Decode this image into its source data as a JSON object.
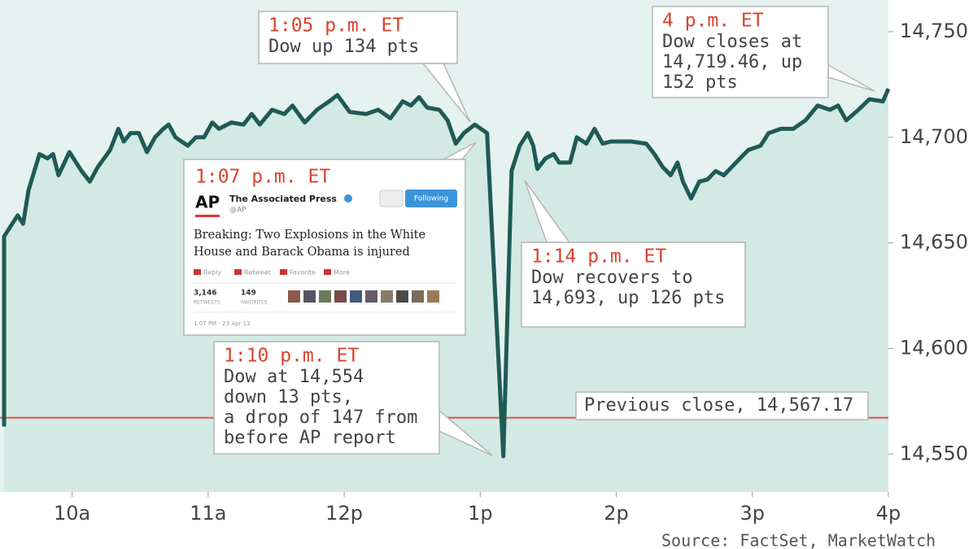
{
  "chart_data": {
    "type": "line",
    "x": [
      9.5,
      9.5,
      9.56,
      9.6,
      9.64,
      9.68,
      9.76,
      9.82,
      9.86,
      9.9,
      9.98,
      10.07,
      10.13,
      10.19,
      10.28,
      10.34,
      10.38,
      10.43,
      10.49,
      10.55,
      10.61,
      10.67,
      10.71,
      10.76,
      10.85,
      10.91,
      10.97,
      11.03,
      11.08,
      11.17,
      11.26,
      11.32,
      11.38,
      11.47,
      11.56,
      11.62,
      11.71,
      11.8,
      11.89,
      11.95,
      12.04,
      12.16,
      12.25,
      12.34,
      12.43,
      12.49,
      12.55,
      12.61,
      12.7,
      12.76,
      12.82,
      12.88,
      12.96,
      13.05,
      13.17,
      13.23,
      13.29,
      13.35,
      13.39,
      13.42,
      13.48,
      13.54,
      13.58,
      13.66,
      13.71,
      13.78,
      13.84,
      13.9,
      13.96,
      14.11,
      14.22,
      14.28,
      14.34,
      14.4,
      14.45,
      14.49,
      14.55,
      14.61,
      14.67,
      14.73,
      14.79,
      14.88,
      14.97,
      15.06,
      15.12,
      15.21,
      15.3,
      15.39,
      15.48,
      15.57,
      15.63,
      15.69,
      15.78,
      15.86,
      15.96,
      16.0
    ],
    "values": [
      14563,
      14653,
      14659,
      14663,
      14659,
      14675,
      14692,
      14690,
      14692,
      14682,
      14693,
      14684,
      14679,
      14686,
      14694,
      14704,
      14698,
      14702,
      14702,
      14693,
      14700,
      14704,
      14706,
      14700,
      14696,
      14700,
      14700,
      14707,
      14704,
      14707,
      14706,
      14711,
      14706,
      14713,
      14711,
      14715,
      14707,
      14713,
      14717,
      14720,
      14712,
      14711,
      14713,
      14709,
      14717,
      14715,
      14719,
      14714,
      14713,
      14708,
      14697,
      14702,
      14706,
      14702,
      14549,
      14684,
      14696,
      14702,
      14696,
      14685,
      14690,
      14692,
      14688,
      14688,
      14700,
      14697,
      14704,
      14697,
      14698,
      14698,
      14697,
      14692,
      14686,
      14682,
      14688,
      14679,
      14671,
      14679,
      14680,
      14684,
      14682,
      14688,
      14694,
      14696,
      14702,
      14704,
      14704,
      14708,
      14715,
      14713,
      14715,
      14708,
      14713,
      14718,
      14717,
      14723
    ],
    "color": "#1f5a57",
    "fill": "#d3e9e4",
    "xlim": [
      9.5,
      16
    ],
    "ylim": [
      14532,
      14765
    ],
    "xticks": [
      {
        "value": 10,
        "label": "10a"
      },
      {
        "value": 11,
        "label": "11a"
      },
      {
        "value": 12,
        "label": "12p"
      },
      {
        "value": 13,
        "label": "1p"
      },
      {
        "value": 14,
        "label": "2p"
      },
      {
        "value": 15,
        "label": "3p"
      },
      {
        "value": 16,
        "label": "4p"
      }
    ],
    "yticks": [
      {
        "value": 14550,
        "label": "14,550"
      },
      {
        "value": 14600,
        "label": "14,600"
      },
      {
        "value": 14650,
        "label": "14,650"
      },
      {
        "value": 14700,
        "label": "14,700"
      },
      {
        "value": 14750,
        "label": "14,750"
      }
    ],
    "reference_line": {
      "value": 14567.17,
      "label": "Previous close, 14,567.17",
      "color": "#d9534f"
    },
    "annotations": [
      {
        "time": "1:05 p.m. ET",
        "lines": [
          "Dow up 134 pts"
        ]
      },
      {
        "time": "4 p.m. ET",
        "lines": [
          "Dow closes at",
          "14,719.46, up",
          "152 pts"
        ]
      },
      {
        "time": "1:14 p.m. ET",
        "lines": [
          "Dow recovers to",
          "14,693, up 126 pts"
        ]
      },
      {
        "time": "1:10 p.m. ET",
        "lines": [
          "Dow at 14,554",
          "down 13 pts,",
          "a drop of 147 from",
          "before AP report"
        ]
      }
    ],
    "tweet": {
      "time": "1:07 p.m. ET",
      "logo": "AP",
      "name": "The Associated Press",
      "handle": "@AP",
      "button": "Following",
      "text_lines": [
        "Breaking: Two Explosions in the White",
        "House and Barack Obama is injured"
      ],
      "actions": [
        "Reply",
        "Retweet",
        "Favorite",
        "More"
      ],
      "retweets": "3,146",
      "retweets_label": "RETWEETS",
      "favorites": "149",
      "favorites_label": "FAVORITES",
      "date": "1:07 PM - 23 Apr 13"
    },
    "source": "Source: FactSet, MarketWatch"
  }
}
